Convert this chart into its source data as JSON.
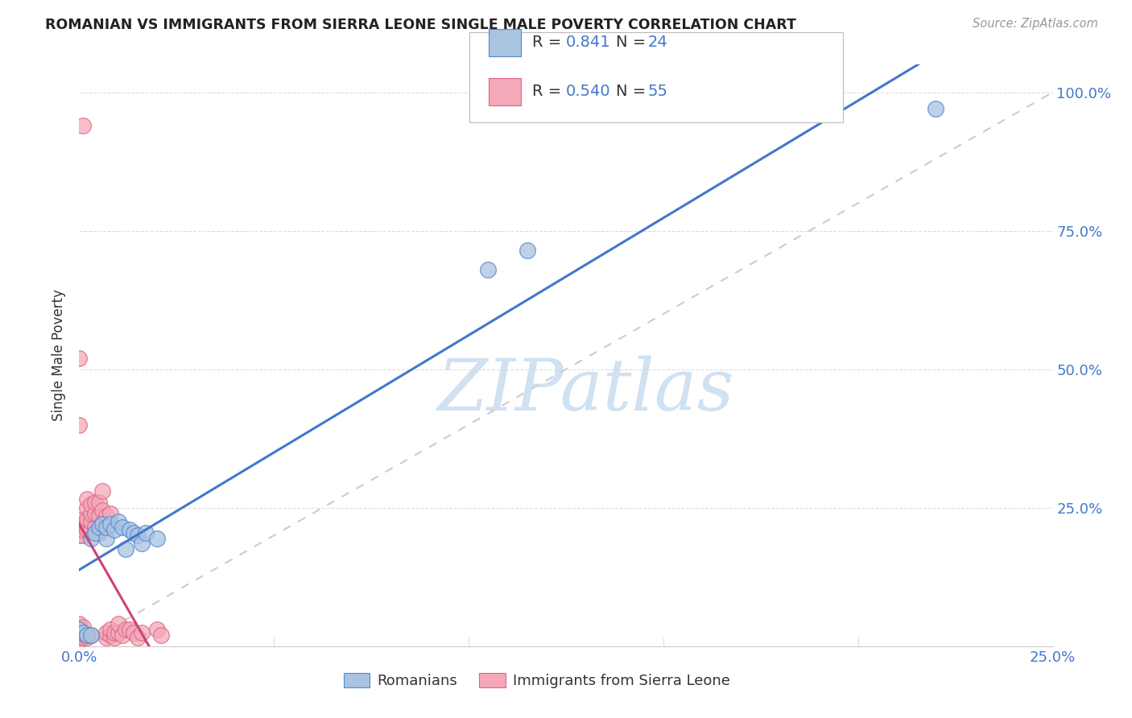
{
  "title": "ROMANIAN VS IMMIGRANTS FROM SIERRA LEONE SINGLE MALE POVERTY CORRELATION CHART",
  "source": "Source: ZipAtlas.com",
  "ylabel": "Single Male Poverty",
  "xlim": [
    0.0,
    0.25
  ],
  "ylim": [
    0.0,
    1.05
  ],
  "x_ticks": [
    0.0,
    0.05,
    0.1,
    0.15,
    0.2,
    0.25
  ],
  "y_ticks": [
    0.0,
    0.25,
    0.5,
    0.75,
    1.0
  ],
  "x_tick_labels": [
    "0.0%",
    "",
    "",
    "",
    "",
    "25.0%"
  ],
  "y_tick_labels": [
    "",
    "25.0%",
    "50.0%",
    "75.0%",
    "100.0%"
  ],
  "blue_fill": "#A8C4E0",
  "pink_fill": "#F4A8B8",
  "blue_edge": "#5588CC",
  "pink_edge": "#DD6688",
  "blue_line": "#4477CC",
  "pink_line": "#CC4477",
  "text_color": "#4477CC",
  "label_color": "#333333",
  "grid_color": "#DDDDDD",
  "watermark": "ZIPatlas",
  "legend_label_blue": "Romanians",
  "legend_label_pink": "Immigrants from Sierra Leone",
  "romanian_R": "0.841",
  "romanian_N": "24",
  "sierraleone_R": "0.540",
  "sierraleone_N": "55",
  "romanian_x": [
    0.0,
    0.001,
    0.002,
    0.003,
    0.003,
    0.004,
    0.005,
    0.006,
    0.007,
    0.007,
    0.008,
    0.009,
    0.01,
    0.011,
    0.012,
    0.013,
    0.014,
    0.015,
    0.016,
    0.017,
    0.02,
    0.105,
    0.115,
    0.22
  ],
  "romanian_y": [
    0.03,
    0.025,
    0.02,
    0.02,
    0.195,
    0.205,
    0.215,
    0.22,
    0.195,
    0.215,
    0.22,
    0.21,
    0.225,
    0.215,
    0.175,
    0.21,
    0.205,
    0.2,
    0.185,
    0.205,
    0.195,
    0.68,
    0.715,
    0.97
  ],
  "sl_x": [
    0.0,
    0.0,
    0.0,
    0.0,
    0.0,
    0.0,
    0.001,
    0.001,
    0.001,
    0.001,
    0.001,
    0.001,
    0.001,
    0.001,
    0.002,
    0.002,
    0.002,
    0.002,
    0.002,
    0.002,
    0.002,
    0.003,
    0.003,
    0.003,
    0.003,
    0.003,
    0.004,
    0.004,
    0.004,
    0.005,
    0.005,
    0.005,
    0.006,
    0.006,
    0.006,
    0.007,
    0.007,
    0.007,
    0.007,
    0.008,
    0.008,
    0.008,
    0.009,
    0.009,
    0.01,
    0.01,
    0.011,
    0.012,
    0.013,
    0.014,
    0.015,
    0.016,
    0.02,
    0.021,
    0.0
  ],
  "sl_y": [
    0.01,
    0.02,
    0.03,
    0.04,
    0.2,
    0.52,
    0.015,
    0.025,
    0.035,
    0.2,
    0.21,
    0.22,
    0.23,
    0.94,
    0.015,
    0.02,
    0.21,
    0.22,
    0.23,
    0.25,
    0.265,
    0.02,
    0.21,
    0.225,
    0.24,
    0.255,
    0.215,
    0.24,
    0.26,
    0.205,
    0.235,
    0.26,
    0.22,
    0.245,
    0.28,
    0.015,
    0.025,
    0.215,
    0.235,
    0.02,
    0.03,
    0.24,
    0.015,
    0.025,
    0.025,
    0.04,
    0.02,
    0.03,
    0.03,
    0.025,
    0.015,
    0.025,
    0.03,
    0.02,
    0.4
  ]
}
